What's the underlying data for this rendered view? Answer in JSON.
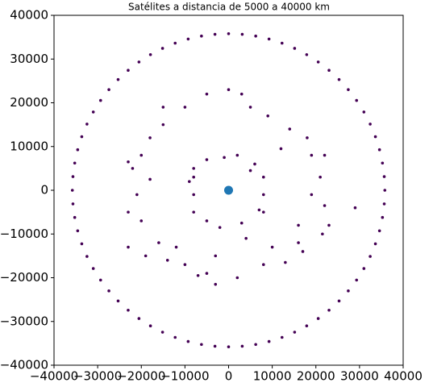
{
  "chart_data": {
    "type": "scatter",
    "title": "Satélites a distancia de 5000 a 40000 km",
    "xlim": [
      -40000,
      40000
    ],
    "ylim": [
      -40000,
      40000
    ],
    "xticks": [
      {
        "value": -40000,
        "label": "−40000"
      },
      {
        "value": -30000,
        "label": "−30000"
      },
      {
        "value": -20000,
        "label": "−20000"
      },
      {
        "value": -10000,
        "label": "−10000"
      },
      0,
      10000,
      20000,
      30000,
      40000
    ],
    "yticks": [
      {
        "value": -40000,
        "label": "−40000"
      },
      {
        "value": -30000,
        "label": "−30000"
      },
      {
        "value": -20000,
        "label": "−20000"
      },
      {
        "value": -10000,
        "label": "−10000"
      },
      0,
      10000,
      20000,
      30000,
      40000
    ],
    "grid": false,
    "series": [
      {
        "color": "#440154",
        "marker_size": 1.8,
        "x": [
          35800,
          35256,
          33641,
          31003,
          27423,
          23012,
          17900,
          12244,
          6215,
          0,
          -6215,
          -12244,
          -17900,
          -23012,
          -27423,
          -31003,
          -33641,
          -35256,
          -35800,
          -35256,
          -33641,
          -31003,
          -27423,
          -23012,
          -17900,
          -12244,
          -6215,
          0,
          6215,
          12244,
          17900,
          23012,
          27423,
          31003,
          33641,
          35256,
          35664,
          34579,
          32446,
          29327,
          25314,
          20535,
          15129,
          9265,
          3122,
          -3122,
          -9265,
          -15129,
          -20535,
          -25314,
          -29327,
          -32446,
          -34579,
          -35664,
          -35664,
          -34579,
          -32446,
          -29327,
          -25314,
          -20535,
          -15129,
          -9265,
          -3122,
          3122,
          9265,
          15129,
          20535,
          25314,
          29327,
          32446,
          34579,
          35664,
          -22000,
          -23000,
          -19000,
          -10000,
          -3000,
          2000,
          8000,
          13000,
          17000,
          21500,
          22000,
          21000,
          22000,
          18000,
          14000,
          9000,
          5000,
          0,
          -5000,
          -10000,
          -15000,
          -18000,
          -20000,
          -21000,
          -20000,
          -16000,
          -14000,
          -7000,
          -12000,
          10000,
          16000,
          19000,
          19000,
          12000,
          -18000,
          -23000,
          -23000,
          29000,
          3000,
          -15000,
          23000,
          16000,
          -8000,
          -5000,
          -1000,
          2000,
          6000,
          8000,
          8000,
          7000,
          3000,
          -2000,
          -5000,
          -8000,
          -8000,
          -9000,
          -5000,
          -3000,
          4000,
          5000,
          -8000,
          8000
        ],
        "values": [
          0,
          6215,
          12244,
          17900,
          23012,
          27423,
          31003,
          33641,
          35256,
          35800,
          35256,
          33641,
          31003,
          27423,
          23012,
          17900,
          12244,
          6215,
          0,
          -6215,
          -12244,
          -17900,
          -23012,
          -27423,
          -31003,
          -33641,
          -35256,
          -35800,
          -35256,
          -33641,
          -31003,
          -27423,
          -23012,
          -17900,
          -12244,
          -6215,
          3122,
          9265,
          15129,
          20535,
          25314,
          29327,
          32446,
          34579,
          35664,
          35664,
          34579,
          32446,
          29327,
          25314,
          20535,
          15129,
          9265,
          3122,
          -3122,
          -9265,
          -15129,
          -20535,
          -25314,
          -29327,
          -32446,
          -34579,
          -35664,
          -35664,
          -34579,
          -32446,
          -29327,
          -25314,
          -20535,
          -15129,
          -9265,
          -3122,
          5000,
          6500,
          -15000,
          -17000,
          -21500,
          -20000,
          -17000,
          -16500,
          -14000,
          -10000,
          -3500,
          3000,
          8000,
          12000,
          14000,
          17000,
          19000,
          23000,
          22000,
          19000,
          15000,
          12000,
          8000,
          -1000,
          -7000,
          -12000,
          -16000,
          -19500,
          -13000,
          -13000,
          -8000,
          -1000,
          8000,
          9500,
          2500,
          -5000,
          -13000,
          -4000,
          22000,
          19000,
          -8000,
          -12000,
          5000,
          7000,
          7500,
          8000,
          6000,
          3000,
          -1000,
          -4500,
          -7500,
          -8500,
          -7000,
          -5000,
          -1000,
          2000,
          -19000,
          -15000,
          -11000,
          4500,
          3000,
          -5000
        ]
      },
      {
        "color": "#1f77b4",
        "marker_size": 5.5,
        "x": [
          0
        ],
        "values": [
          0
        ]
      }
    ]
  }
}
